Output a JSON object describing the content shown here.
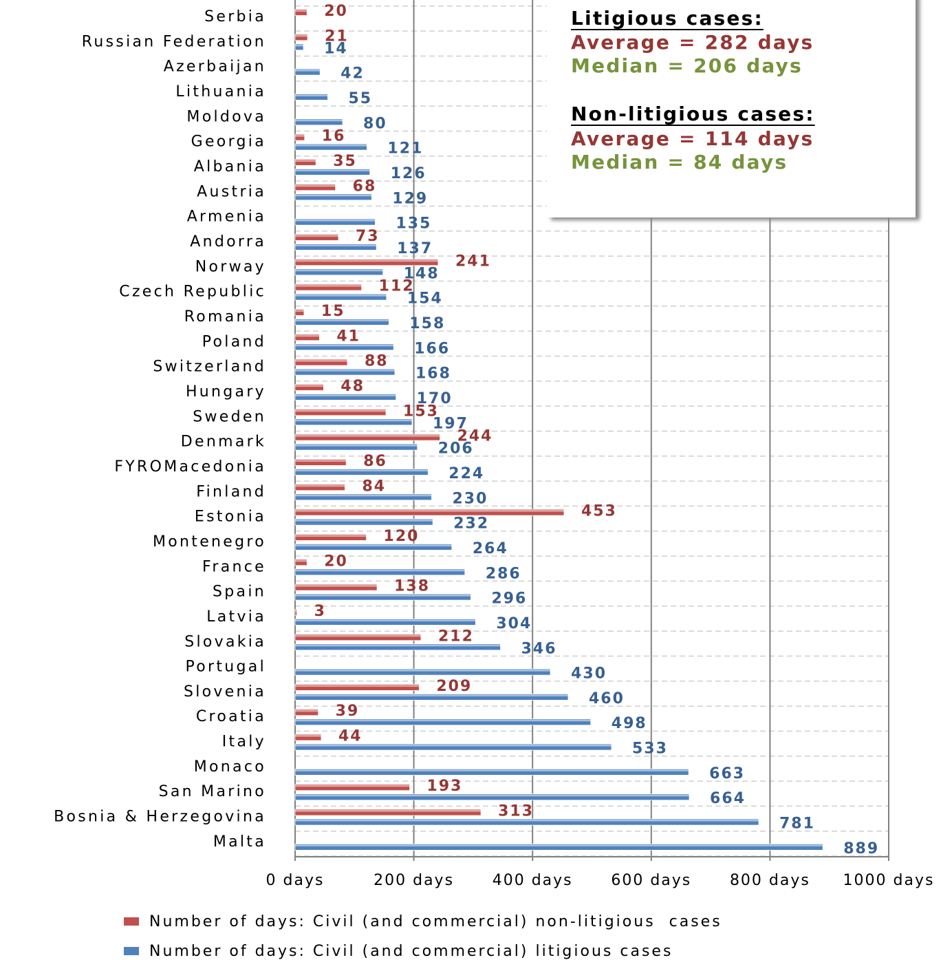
{
  "chart_data": {
    "type": "bar",
    "orientation": "horizontal",
    "categories": [
      "Serbia",
      "Russian Federation",
      "Azerbaijan",
      "Lithuania",
      "Moldova",
      "Georgia",
      "Albania",
      "Austria",
      "Armenia",
      "Andorra",
      "Norway",
      "Czech Republic",
      "Romania",
      "Poland",
      "Switzerland",
      "Hungary",
      "Sweden",
      "Denmark",
      "FYROMacedonia",
      "Finland",
      "Estonia",
      "Montenegro",
      "France",
      "Spain",
      "Latvia",
      "Slovakia",
      "Portugal",
      "Slovenia",
      "Croatia",
      "Italy",
      "Monaco",
      "San Marino",
      "Bosnia & Herzegovina",
      "Malta"
    ],
    "series": [
      {
        "name": "Number of days: Civil (and commercial) non-litigious  cases",
        "color": "#c0504d",
        "label_color": "#953735",
        "values": [
          20,
          21,
          null,
          null,
          null,
          16,
          35,
          68,
          null,
          73,
          241,
          112,
          15,
          41,
          88,
          48,
          153,
          244,
          86,
          84,
          453,
          120,
          20,
          138,
          3,
          212,
          null,
          209,
          39,
          44,
          null,
          193,
          313,
          null
        ]
      },
      {
        "name": "Number of days: Civil (and commercial) litigious cases",
        "color": "#4f81bd",
        "label_color": "#376092",
        "values": [
          null,
          14,
          42,
          55,
          80,
          121,
          126,
          129,
          135,
          137,
          148,
          154,
          158,
          166,
          168,
          170,
          197,
          206,
          224,
          230,
          232,
          264,
          286,
          296,
          304,
          346,
          430,
          460,
          498,
          533,
          663,
          664,
          781,
          889
        ]
      }
    ],
    "xlim": [
      0,
      1000
    ],
    "xticks": [
      {
        "value": 0,
        "label": "0 days"
      },
      {
        "value": 200,
        "label": "200 days"
      },
      {
        "value": 400,
        "label": "400 days"
      },
      {
        "value": 600,
        "label": "600 days"
      },
      {
        "value": 800,
        "label": "800 days"
      },
      {
        "value": 1000,
        "label": "1000 days"
      }
    ],
    "grid": true,
    "legend": "bottom",
    "annotations": [
      {
        "text": "Litigious cases:",
        "color": "#000000"
      },
      {
        "text": "Average = 282 days",
        "color": "#953735"
      },
      {
        "text": "Median = 206 days",
        "color": "#77933c"
      },
      {
        "text": "Non-litigious cases:",
        "color": "#000000"
      },
      {
        "text": "Average = 114 days",
        "color": "#953735"
      },
      {
        "text": "Median = 84 days",
        "color": "#77933c"
      }
    ]
  }
}
